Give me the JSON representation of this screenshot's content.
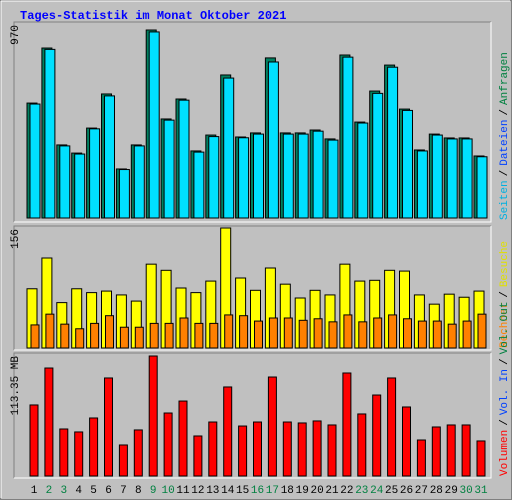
{
  "chart_data": {
    "type": "bar",
    "title": "Tages-Statistik im Monat Oktober 2021",
    "categories": [
      "1",
      "2",
      "3",
      "4",
      "5",
      "6",
      "7",
      "8",
      "9",
      "10",
      "11",
      "12",
      "13",
      "14",
      "15",
      "16",
      "17",
      "18",
      "19",
      "20",
      "21",
      "22",
      "23",
      "24",
      "25",
      "26",
      "27",
      "28",
      "29",
      "30",
      "31"
    ],
    "category_colors": [
      "#000000",
      "#008040",
      "#008040",
      "#000000",
      "#000000",
      "#000000",
      "#000000",
      "#000000",
      "#008040",
      "#008040",
      "#000000",
      "#000000",
      "#000000",
      "#000000",
      "#000000",
      "#008040",
      "#008040",
      "#000000",
      "#000000",
      "#000000",
      "#000000",
      "#000000",
      "#008040",
      "#008040",
      "#000000",
      "#000000",
      "#000000",
      "#000000",
      "#000000",
      "#008040",
      "#008040"
    ],
    "panels": [
      {
        "ylim": [
          0,
          970
        ],
        "yticks": [
          970
        ],
        "legend": [
          {
            "label": "Seiten",
            "color": "#00b0e0"
          },
          {
            "label": "/",
            "color": "#000000"
          },
          {
            "label": "Dateien",
            "color": "#0040ff"
          },
          {
            "label": "/",
            "color": "#000000"
          },
          {
            "label": "Anfragen",
            "color": "#008040"
          }
        ],
        "series": [
          {
            "color": "#008060",
            "values": [
              593,
              877,
              377,
              335,
              464,
              640,
              253,
              377,
              970,
              511,
              614,
              346,
              428,
              738,
              418,
              439,
              826,
              439,
              439,
              454,
              408,
              841,
              495,
              655,
              789,
              562,
              351,
              433,
              413,
              413,
              320
            ]
          },
          {
            "color": "#00e0ff",
            "values": [
              588,
              870,
              372,
              330,
              460,
              630,
              250,
              372,
              960,
              505,
              608,
              340,
              420,
              722,
              414,
              433,
              805,
              433,
              433,
              448,
              402,
              830,
              490,
              643,
              778,
              555,
              346,
              428,
              408,
              408,
              316
            ]
          }
        ]
      },
      {
        "ylim": [
          0,
          156
        ],
        "yticks": [
          156
        ],
        "legend": [
          {
            "label": "Rechner",
            "color": "#ff8000"
          },
          {
            "label": "/",
            "color": "#000000"
          },
          {
            "label": "Besuche",
            "color": "#e0e000"
          }
        ],
        "series": [
          {
            "color": "#ffff00",
            "values": [
              77,
              117,
              59,
              77,
              72,
              74,
              69,
              61,
              109,
              101,
              78,
              72,
              87,
              156,
              91,
              75,
              104,
              83,
              65,
              75,
              69,
              109,
              87,
              88,
              101,
              100,
              69,
              57,
              70,
              66,
              74
            ]
          },
          {
            "color": "#ff8000",
            "values": [
              30,
              44,
              31,
              25,
              32,
              42,
              27,
              27,
              32,
              32,
              39,
              32,
              32,
              43,
              42,
              35,
              39,
              39,
              36,
              38,
              34,
              43,
              34,
              39,
              43,
              38,
              35,
              35,
              31,
              35,
              44
            ]
          }
        ]
      },
      {
        "ylim": [
          0,
          113.35
        ],
        "yticks": [
          {
            "value": 113.35,
            "label": "113.35 MB"
          }
        ],
        "legend": [
          {
            "label": "Volumen",
            "color": "#ff0000"
          },
          {
            "label": "/",
            "color": "#000000"
          },
          {
            "label": "Vol. In",
            "color": "#0040ff"
          },
          {
            "label": "/",
            "color": "#000000"
          },
          {
            "label": "Vol. Out",
            "color": "#008040"
          }
        ],
        "series": [
          {
            "color": "#ff0000",
            "values": [
              67.1,
              102.0,
              44.4,
              41.6,
              54.8,
              92.6,
              29.3,
              43.5,
              113.35,
              59.5,
              70.8,
              37.8,
              51.0,
              84.1,
              47.2,
              51.0,
              93.5,
              51.0,
              50.1,
              52.0,
              48.2,
              97.3,
              58.6,
              76.5,
              92.6,
              65.2,
              34.0,
              46.3,
              48.2,
              48.2,
              33.1
            ]
          }
        ]
      }
    ]
  }
}
